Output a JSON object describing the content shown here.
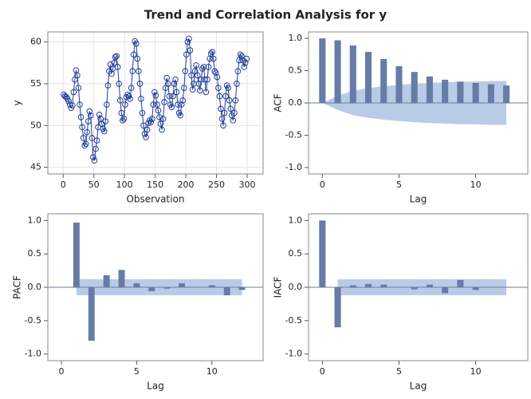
{
  "title": "Trend and Correlation Analysis for y",
  "chart_data": [
    {
      "type": "line",
      "xlabel": "Observation",
      "ylabel": "y",
      "color": "#1f3d99",
      "grid": true,
      "xlim": [
        -25,
        326
      ],
      "ylim": [
        44.2,
        61.2
      ],
      "xticks": [
        0,
        50,
        100,
        150,
        200,
        250,
        300
      ],
      "yticks": [
        45,
        50,
        55,
        60
      ],
      "x": [
        1,
        3,
        5,
        7,
        9,
        11,
        13,
        15,
        17,
        19,
        21,
        23,
        25,
        27,
        29,
        31,
        33,
        35,
        37,
        39,
        41,
        43,
        45,
        47,
        49,
        51,
        53,
        55,
        57,
        59,
        61,
        63,
        65,
        67,
        69,
        71,
        73,
        75,
        77,
        79,
        81,
        83,
        85,
        87,
        89,
        91,
        93,
        95,
        97,
        99,
        101,
        103,
        105,
        107,
        109,
        111,
        113,
        115,
        117,
        119,
        121,
        123,
        125,
        127,
        129,
        131,
        133,
        135,
        137,
        139,
        141,
        143,
        145,
        147,
        149,
        151,
        153,
        155,
        157,
        159,
        161,
        163,
        165,
        167,
        169,
        171,
        173,
        175,
        177,
        179,
        181,
        183,
        185,
        187,
        189,
        191,
        193,
        195,
        197,
        199,
        201,
        203,
        205,
        207,
        209,
        211,
        213,
        215,
        217,
        219,
        221,
        223,
        225,
        227,
        229,
        231,
        233,
        235,
        237,
        239,
        241,
        243,
        245,
        247,
        249,
        251,
        253,
        255,
        257,
        259,
        261,
        263,
        265,
        267,
        269,
        271,
        273,
        275,
        277,
        279,
        281,
        283,
        285,
        287,
        289,
        291,
        293,
        295,
        297,
        299
      ],
      "values": [
        53.7,
        53.5,
        53.4,
        53.2,
        52.9,
        52.5,
        52.1,
        52.4,
        54.0,
        55.5,
        56.6,
        56.0,
        54.5,
        52.5,
        51.0,
        49.8,
        48.5,
        47.6,
        47.8,
        49.2,
        50.5,
        51.7,
        51.2,
        48.5,
        46.2,
        45.8,
        47.2,
        48.2,
        49.8,
        51.3,
        50.8,
        50.2,
        49.6,
        49.3,
        50.5,
        52.5,
        54.8,
        56.5,
        57.3,
        56.2,
        56.8,
        57.5,
        58.2,
        58.3,
        57.0,
        55.0,
        53.0,
        51.5,
        50.6,
        50.8,
        52.5,
        53.4,
        53.7,
        53.5,
        53.2,
        54.5,
        56.5,
        58.5,
        60.1,
        59.8,
        58.0,
        56.5,
        55.0,
        53.2,
        51.5,
        50.0,
        49.0,
        48.6,
        49.5,
        50.3,
        50.6,
        50.4,
        50.8,
        52.5,
        54.0,
        53.6,
        52.5,
        51.8,
        51.0,
        50.2,
        49.5,
        50.8,
        52.8,
        54.5,
        55.7,
        55.0,
        53.5,
        52.5,
        52.2,
        53.5,
        55.0,
        55.5,
        54.0,
        52.5,
        51.5,
        51.2,
        52.5,
        53.0,
        54.5,
        56.5,
        58.5,
        60.0,
        60.4,
        59.0,
        56.0,
        54.3,
        55.0,
        56.5,
        57.2,
        56.0,
        55.0,
        54.2,
        55.5,
        56.8,
        57.0,
        55.5,
        54.0,
        55.5,
        57.0,
        58.0,
        58.6,
        58.8,
        58.0,
        56.5,
        56.3,
        55.8,
        54.5,
        53.5,
        52.0,
        50.8,
        50.0,
        51.5,
        53.5,
        54.8,
        54.5,
        53.0,
        52.0,
        51.2,
        50.6,
        51.5,
        53.0,
        55.0,
        56.5,
        57.8,
        58.5,
        58.3,
        57.8,
        57.0,
        57.5,
        58.0
      ]
    },
    {
      "type": "bar",
      "xlabel": "Lag",
      "ylabel": "ACF",
      "color": "#667ba6",
      "band_color": "#b8cce8",
      "xlim": [
        -0.9,
        13.4
      ],
      "ylim": [
        -1.1,
        1.1
      ],
      "xticks": [
        0,
        5,
        10
      ],
      "yticks": [
        {
          "value": -1,
          "label": "-1.0"
        },
        -0.5,
        {
          "value": 0,
          "label": "0.0"
        },
        0.5,
        {
          "value": 1,
          "label": "1.0"
        }
      ],
      "x": [
        0,
        1,
        2,
        3,
        4,
        5,
        6,
        7,
        8,
        9,
        10,
        11,
        12
      ],
      "values": [
        1.0,
        0.97,
        0.89,
        0.79,
        0.68,
        0.57,
        0.48,
        0.41,
        0.36,
        0.33,
        0.31,
        0.29,
        0.27
      ],
      "band_x": [
        0,
        1,
        2,
        3,
        4,
        5,
        6,
        7,
        8,
        9,
        10,
        11,
        12
      ],
      "band_upper": [
        0,
        0.11,
        0.19,
        0.23,
        0.26,
        0.28,
        0.3,
        0.31,
        0.32,
        0.33,
        0.33,
        0.34,
        0.34
      ],
      "band_lower": [
        0,
        -0.11,
        -0.19,
        -0.23,
        -0.26,
        -0.28,
        -0.3,
        -0.31,
        -0.32,
        -0.33,
        -0.33,
        -0.34,
        -0.34
      ]
    },
    {
      "type": "bar",
      "xlabel": "Lag",
      "ylabel": "PACF",
      "color": "#667ba6",
      "band_color": "#b8cce8",
      "xlim": [
        -0.9,
        13.4
      ],
      "ylim": [
        -1.1,
        1.1
      ],
      "xticks": [
        0,
        5,
        10
      ],
      "yticks": [
        {
          "value": -1,
          "label": "-1.0"
        },
        -0.5,
        {
          "value": 0,
          "label": "0.0"
        },
        0.5,
        {
          "value": 1,
          "label": "1.0"
        }
      ],
      "x": [
        1,
        2,
        3,
        4,
        5,
        6,
        7,
        8,
        9,
        10,
        11,
        12
      ],
      "values": [
        0.97,
        -0.8,
        0.18,
        0.26,
        0.06,
        -0.06,
        -0.02,
        0.06,
        0.0,
        0.03,
        -0.12,
        -0.04
      ],
      "band_x": [
        1,
        12
      ],
      "band_upper": [
        0.12,
        0.12
      ],
      "band_lower": [
        -0.12,
        -0.12
      ]
    },
    {
      "type": "bar",
      "xlabel": "Lag",
      "ylabel": "IACF",
      "color": "#667ba6",
      "band_color": "#b8cce8",
      "xlim": [
        -0.9,
        13.4
      ],
      "ylim": [
        -1.1,
        1.1
      ],
      "xticks": [
        0,
        5,
        10
      ],
      "yticks": [
        {
          "value": -1,
          "label": "-1.0"
        },
        -0.5,
        {
          "value": 0,
          "label": "0.0"
        },
        0.5,
        {
          "value": 1,
          "label": "1.0"
        }
      ],
      "x": [
        0,
        1,
        2,
        3,
        4,
        5,
        6,
        7,
        8,
        9,
        10,
        11,
        12
      ],
      "values": [
        1.0,
        -0.6,
        0.03,
        0.05,
        0.04,
        0.0,
        -0.03,
        0.04,
        -0.09,
        0.11,
        -0.04,
        0.0,
        0.0
      ],
      "band_x": [
        1,
        12
      ],
      "band_upper": [
        0.12,
        0.12
      ],
      "band_lower": [
        -0.12,
        -0.12
      ]
    }
  ]
}
